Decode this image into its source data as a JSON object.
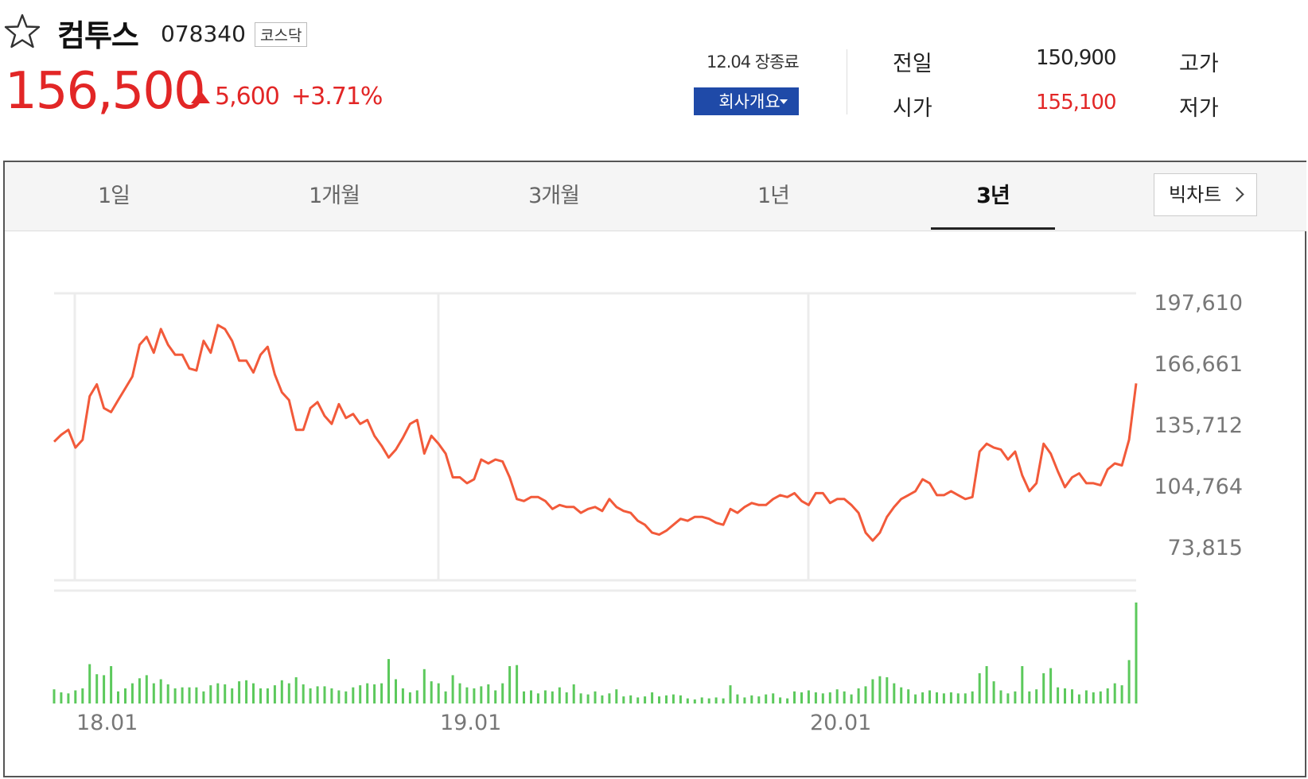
{
  "stock": {
    "name": "컴투스",
    "code": "078340",
    "market": "코스닥",
    "price": "156,500",
    "change_amount": "5,600",
    "change_rate": "+3.71%",
    "direction": "up"
  },
  "status": {
    "market_status": "12.04 장종료",
    "company_button": "회사개요"
  },
  "quote": {
    "prev_close_label": "전일",
    "prev_close_value": "150,900",
    "high_label": "고가",
    "open_label": "시가",
    "open_value": "155,100",
    "low_label": "저가"
  },
  "tabs": [
    {
      "label": "1일",
      "active": false
    },
    {
      "label": "1개월",
      "active": false
    },
    {
      "label": "3개월",
      "active": false
    },
    {
      "label": "1년",
      "active": false
    },
    {
      "label": "3년",
      "active": true
    }
  ],
  "bigchart_label": "빅차트",
  "colors": {
    "up": "#e22626",
    "price_line": "#f25a3a",
    "volume": "#5cc95c",
    "button_blue": "#1f4aa8"
  },
  "icons": {
    "favorite": "star-outline-icon",
    "dropdown": "caret-down-icon",
    "more": "chevron-right-icon"
  },
  "chart_data": {
    "type": "line",
    "y_ticks": [
      197610,
      166661,
      135712,
      104764,
      73815
    ],
    "y_tick_labels": [
      "197,610",
      "166,661",
      "135,712",
      "104,764",
      "73,815"
    ],
    "x_labels": [
      "18.01",
      "19.01",
      "20.01"
    ],
    "ylim": [
      73815,
      197610
    ],
    "grid": true,
    "price": [
      127000,
      130500,
      133000,
      124000,
      128000,
      150000,
      156000,
      144000,
      142000,
      148000,
      154000,
      160000,
      176000,
      180000,
      172000,
      184000,
      176000,
      171000,
      171000,
      164000,
      163000,
      178000,
      172000,
      186000,
      184000,
      178000,
      168000,
      168000,
      162000,
      171000,
      175000,
      161000,
      152000,
      148000,
      133000,
      133000,
      144000,
      147000,
      140000,
      136000,
      146000,
      139000,
      141000,
      136000,
      138000,
      130000,
      125000,
      119000,
      123000,
      129000,
      136000,
      138000,
      121000,
      130000,
      126000,
      121000,
      109000,
      109000,
      106000,
      108000,
      118000,
      116000,
      118000,
      117000,
      109000,
      98000,
      97000,
      99000,
      99000,
      97000,
      93000,
      95000,
      94000,
      94000,
      91000,
      93000,
      94000,
      92000,
      98000,
      94000,
      92000,
      91000,
      87000,
      85000,
      81000,
      80000,
      82000,
      85000,
      88000,
      87000,
      89000,
      89000,
      88000,
      86000,
      85000,
      93000,
      91000,
      94000,
      96000,
      95000,
      95000,
      98000,
      100000,
      99000,
      101000,
      97000,
      95000,
      101000,
      101000,
      96000,
      98000,
      98000,
      95000,
      91000,
      81000,
      77000,
      81000,
      89000,
      94000,
      98000,
      100000,
      102000,
      108000,
      106000,
      100000,
      100000,
      102000,
      100000,
      98000,
      99000,
      122000,
      126000,
      124000,
      123000,
      118000,
      122000,
      110000,
      102000,
      106000,
      126000,
      121000,
      112000,
      104000,
      109000,
      111000,
      106000,
      106000,
      105000,
      113000,
      116000,
      115000,
      128000,
      156500
    ],
    "volume": [
      0.14,
      0.11,
      0.1,
      0.13,
      0.15,
      0.39,
      0.29,
      0.28,
      0.37,
      0.12,
      0.15,
      0.2,
      0.25,
      0.28,
      0.2,
      0.24,
      0.19,
      0.15,
      0.16,
      0.16,
      0.16,
      0.12,
      0.18,
      0.2,
      0.19,
      0.15,
      0.22,
      0.23,
      0.2,
      0.15,
      0.15,
      0.18,
      0.23,
      0.2,
      0.26,
      0.19,
      0.15,
      0.17,
      0.17,
      0.15,
      0.13,
      0.12,
      0.16,
      0.18,
      0.2,
      0.19,
      0.2,
      0.44,
      0.24,
      0.15,
      0.11,
      0.13,
      0.34,
      0.22,
      0.2,
      0.12,
      0.28,
      0.2,
      0.16,
      0.15,
      0.17,
      0.19,
      0.13,
      0.2,
      0.37,
      0.38,
      0.12,
      0.13,
      0.1,
      0.13,
      0.12,
      0.16,
      0.11,
      0.19,
      0.1,
      0.09,
      0.12,
      0.08,
      0.1,
      0.14,
      0.07,
      0.08,
      0.06,
      0.07,
      0.11,
      0.07,
      0.08,
      0.09,
      0.08,
      0.05,
      0.04,
      0.06,
      0.05,
      0.06,
      0.05,
      0.18,
      0.09,
      0.06,
      0.08,
      0.07,
      0.09,
      0.1,
      0.06,
      0.05,
      0.12,
      0.11,
      0.13,
      0.11,
      0.1,
      0.11,
      0.14,
      0.12,
      0.09,
      0.15,
      0.17,
      0.24,
      0.27,
      0.26,
      0.2,
      0.16,
      0.14,
      0.09,
      0.11,
      0.13,
      0.11,
      0.1,
      0.11,
      0.1,
      0.1,
      0.12,
      0.3,
      0.37,
      0.22,
      0.13,
      0.1,
      0.12,
      0.37,
      0.12,
      0.14,
      0.3,
      0.35,
      0.16,
      0.15,
      0.14,
      0.09,
      0.13,
      0.11,
      0.12,
      0.15,
      0.2,
      0.18,
      0.43,
      1.0
    ]
  }
}
